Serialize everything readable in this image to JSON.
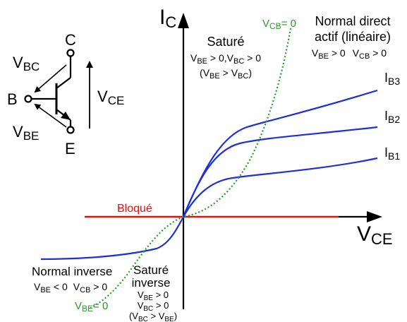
{
  "colors": {
    "axis": "#000000",
    "curve": "#1f2fd6",
    "blocked": "#e01010",
    "boundary": "#2a9a2a",
    "text": "#000000"
  },
  "axes": {
    "y_main": "I",
    "y_sub": "C",
    "x_main": "V",
    "x_sub": "CE"
  },
  "curves": [
    {
      "main": "I",
      "sub": "B3"
    },
    {
      "main": "I",
      "sub": "B2"
    },
    {
      "main": "I",
      "sub": "B1"
    }
  ],
  "boundaries": {
    "vcb_main": "V",
    "vcb_sub": "CB",
    "vcb_value": "= 0",
    "vbe_main": "V",
    "vbe_sub": "BE",
    "vbe_value": "= 0"
  },
  "regions": {
    "sature": {
      "title": "Saturé",
      "l1": {
        "a_main": "V",
        "a_sub": "BE",
        "a_rest": " > 0,",
        "b_main": "V",
        "b_sub": "BC",
        "b_rest": " > 0"
      },
      "l2": {
        "open": "(",
        "a_main": "V",
        "a_sub": "BE",
        "op": " > ",
        "b_main": "V",
        "b_sub": "BC",
        "close": ")"
      }
    },
    "normal_direct": {
      "title1": "Normal direct",
      "title2": "actif (linéaire)",
      "l1": {
        "a_main": "V",
        "a_sub": "BE",
        "a_rest": " > 0",
        "b_main": "V",
        "b_sub": "CB",
        "b_rest": " > 0"
      }
    },
    "bloque": {
      "title": "Bloqué"
    },
    "normal_inverse": {
      "title": "Normal inverse",
      "l1": {
        "a_main": "V",
        "a_sub": "BE",
        "a_rest": " < 0",
        "b_main": "V",
        "b_sub": "CB",
        "b_rest": " > 0"
      }
    },
    "sature_inverse": {
      "title1": "Saturé",
      "title2": "inverse",
      "l1": {
        "a_main": "V",
        "a_sub": "BE",
        "a_rest": " > 0"
      },
      "l2": {
        "a_main": "V",
        "a_sub": "BC",
        "a_rest": " > 0"
      },
      "l3": {
        "open": "(",
        "a_main": "V",
        "a_sub": "BC",
        "op": " > ",
        "b_main": "V",
        "b_sub": "BE",
        "close": ")"
      }
    }
  },
  "transistor": {
    "collector": "C",
    "base": "B",
    "emitter": "E",
    "vbc_main": "V",
    "vbc_sub": "BC",
    "vbe_main": "V",
    "vbe_sub": "BE",
    "vce_main": "V",
    "vce_sub": "CE"
  }
}
